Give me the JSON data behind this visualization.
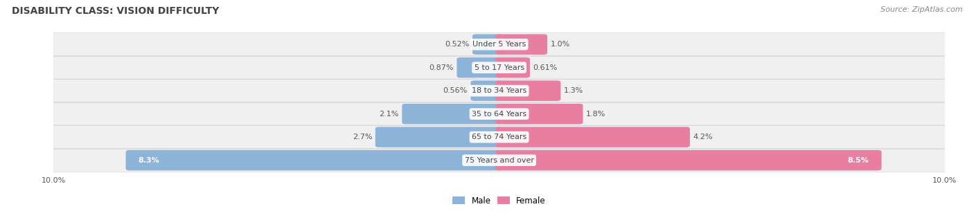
{
  "title": "DISABILITY CLASS: VISION DIFFICULTY",
  "source": "Source: ZipAtlas.com",
  "categories": [
    "Under 5 Years",
    "5 to 17 Years",
    "18 to 34 Years",
    "35 to 64 Years",
    "65 to 74 Years",
    "75 Years and over"
  ],
  "male_values": [
    0.52,
    0.87,
    0.56,
    2.1,
    2.7,
    8.3
  ],
  "female_values": [
    1.0,
    0.61,
    1.3,
    1.8,
    4.2,
    8.5
  ],
  "male_labels": [
    "0.52%",
    "0.87%",
    "0.56%",
    "2.1%",
    "2.7%",
    "8.3%"
  ],
  "female_labels": [
    "1.0%",
    "0.61%",
    "1.3%",
    "1.8%",
    "4.2%",
    "8.5%"
  ],
  "male_color": "#8db4d8",
  "female_color": "#e87fa0",
  "row_bg_color": "#f0f0f0",
  "axis_max": 10.0,
  "legend_male": "Male",
  "legend_female": "Female",
  "title_fontsize": 10,
  "label_fontsize": 8,
  "category_fontsize": 8,
  "source_fontsize": 8,
  "inside_label_threshold": 5.0
}
